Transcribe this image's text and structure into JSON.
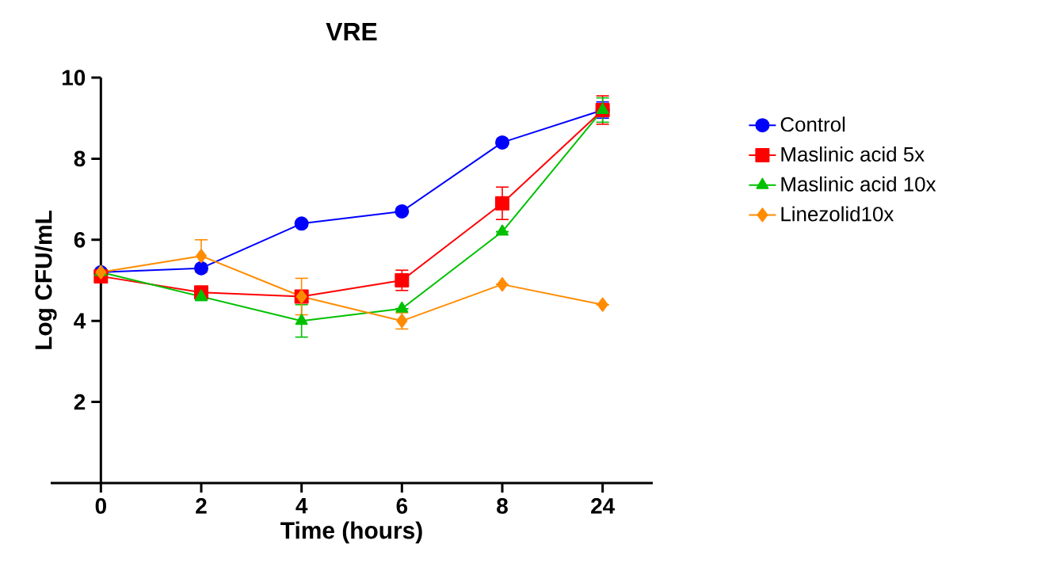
{
  "chart_data": {
    "type": "line",
    "title": "VRE",
    "xlabel": "Time (hours)",
    "ylabel": "Log CFU/mL",
    "categories": [
      "0",
      "2",
      "4",
      "6",
      "8",
      "24"
    ],
    "ylim": [
      0,
      10
    ],
    "yticks": [
      2,
      4,
      6,
      8,
      10
    ],
    "grid": false,
    "legend": "right",
    "series": [
      {
        "name": "Control",
        "color": "#0000ff",
        "marker": "circle",
        "values": [
          5.2,
          5.3,
          6.4,
          6.7,
          8.4,
          9.2
        ],
        "errors": [
          null,
          null,
          null,
          null,
          null,
          0.2
        ]
      },
      {
        "name": "Maslinic acid 5x",
        "color": "#ff0000",
        "marker": "square",
        "values": [
          5.1,
          4.7,
          4.6,
          5.0,
          6.9,
          9.2
        ],
        "errors": [
          null,
          null,
          null,
          0.25,
          0.4,
          0.35
        ]
      },
      {
        "name": "Maslinic acid 10x",
        "color": "#00c000",
        "marker": "triangle",
        "values": [
          5.2,
          4.6,
          4.0,
          4.3,
          6.2,
          9.2
        ],
        "errors": [
          null,
          0.1,
          0.4,
          null,
          null,
          0.3
        ]
      },
      {
        "name": "Linezolid10x",
        "color": "#ff8c00",
        "marker": "diamond",
        "values": [
          5.2,
          5.6,
          4.6,
          4.0,
          4.9,
          4.4
        ],
        "errors": [
          null,
          0.4,
          0.45,
          0.2,
          null,
          null
        ]
      }
    ]
  }
}
